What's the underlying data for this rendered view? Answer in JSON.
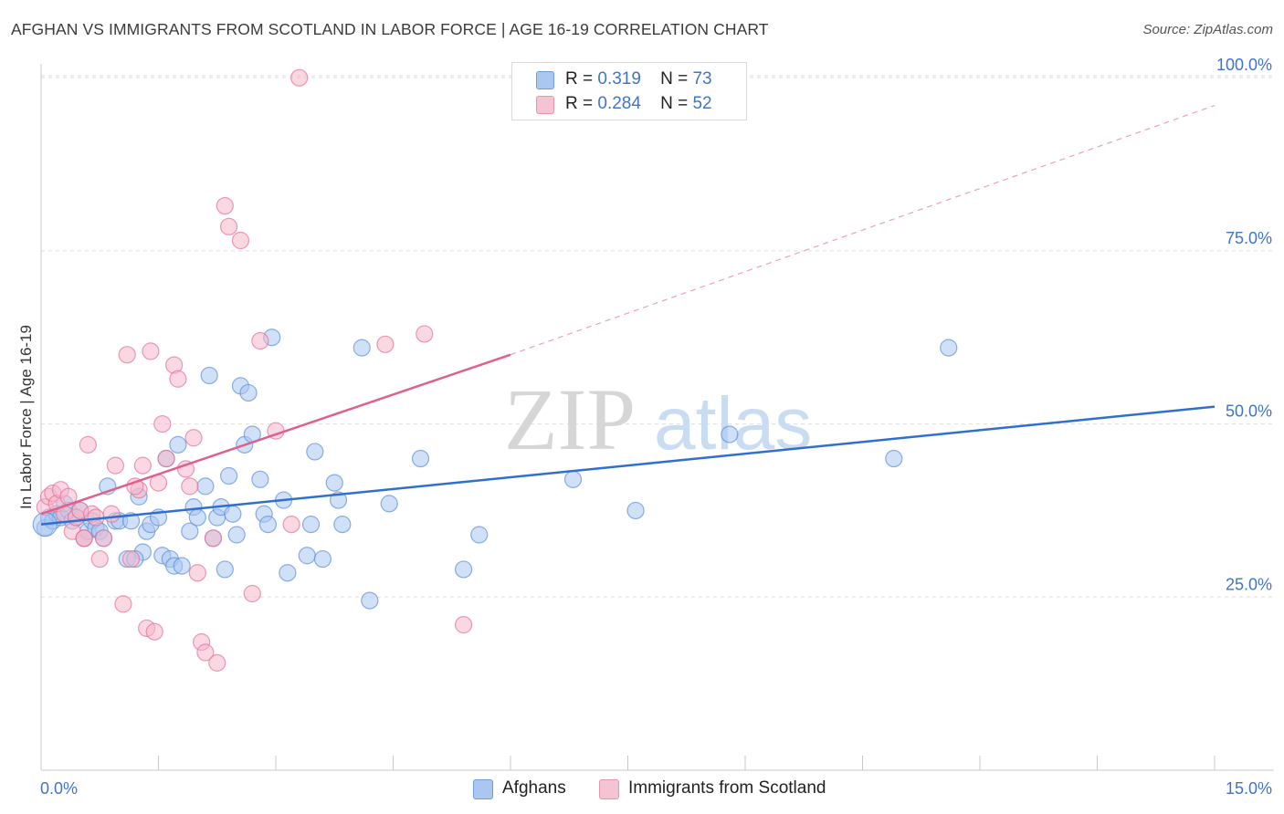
{
  "title": "AFGHAN VS IMMIGRANTS FROM SCOTLAND IN LABOR FORCE | AGE 16-19 CORRELATION CHART",
  "source": "Source: ZipAtlas.com",
  "watermark": {
    "part1": "ZIP",
    "part2": "atlas"
  },
  "legend": {
    "rows": [
      {
        "r_label": "R =",
        "r_value": "0.319",
        "n_label": "N =",
        "n_value": "73",
        "color": "#a9c7f0"
      },
      {
        "r_label": "R =",
        "r_value": "0.284",
        "n_label": "N =",
        "n_value": "52",
        "color": "#f5b8cb"
      }
    ]
  },
  "bottom_legend": [
    {
      "label": "Afghans",
      "color": "#a9c7f0"
    },
    {
      "label": "Immigrants from Scotland",
      "color": "#f5b8cb"
    }
  ],
  "chart_data": {
    "type": "scatter",
    "title": "AFGHAN VS IMMIGRANTS FROM SCOTLAND IN LABOR FORCE | AGE 16-19 CORRELATION CHART",
    "xlabel": "",
    "ylabel": "In Labor Force | Age 16-19",
    "xlim": [
      0,
      15
    ],
    "ylim": [
      0,
      102
    ],
    "x_tick_labels": [
      "0.0%",
      "15.0%"
    ],
    "y_ticks": [
      25,
      50,
      75,
      100
    ],
    "y_tick_labels": [
      "25.0%",
      "50.0%",
      "75.0%",
      "100.0%"
    ],
    "grid": true,
    "legend_position": "top-center",
    "series": [
      {
        "name": "Afghans",
        "color": "#5b8fd9",
        "fill": "#a9c7f0",
        "trend": {
          "x": [
            0,
            15
          ],
          "y": [
            35.5,
            52.5
          ],
          "dashed_from": null
        },
        "points": [
          [
            0.05,
            35.0
          ],
          [
            0.1,
            36.5
          ],
          [
            0.15,
            36.0
          ],
          [
            0.2,
            37.0
          ],
          [
            0.25,
            36.5
          ],
          [
            0.3,
            38.5
          ],
          [
            0.35,
            37.5
          ],
          [
            0.4,
            36.0
          ],
          [
            0.5,
            37.5
          ],
          [
            0.55,
            33.5
          ],
          [
            0.6,
            34.5
          ],
          [
            0.65,
            36.0
          ],
          [
            0.7,
            35.0
          ],
          [
            0.75,
            34.5
          ],
          [
            0.8,
            33.5
          ],
          [
            0.85,
            41.0
          ],
          [
            0.95,
            36.0
          ],
          [
            1.0,
            36.0
          ],
          [
            1.1,
            30.5
          ],
          [
            1.15,
            36.0
          ],
          [
            1.25,
            39.5
          ],
          [
            1.3,
            31.5
          ],
          [
            1.35,
            34.5
          ],
          [
            1.4,
            35.5
          ],
          [
            1.5,
            36.5
          ],
          [
            1.55,
            31.0
          ],
          [
            1.6,
            45.0
          ],
          [
            1.65,
            30.5
          ],
          [
            1.7,
            29.5
          ],
          [
            1.75,
            47.0
          ],
          [
            1.8,
            29.5
          ],
          [
            1.9,
            34.5
          ],
          [
            1.95,
            38.0
          ],
          [
            2.0,
            36.5
          ],
          [
            2.1,
            41.0
          ],
          [
            2.15,
            57.0
          ],
          [
            2.2,
            33.5
          ],
          [
            2.25,
            36.5
          ],
          [
            2.3,
            38.0
          ],
          [
            2.35,
            29.0
          ],
          [
            2.4,
            42.5
          ],
          [
            2.45,
            37.0
          ],
          [
            2.5,
            34.0
          ],
          [
            2.55,
            55.5
          ],
          [
            2.6,
            47.0
          ],
          [
            2.65,
            54.5
          ],
          [
            2.7,
            48.5
          ],
          [
            2.8,
            42.0
          ],
          [
            2.85,
            37.0
          ],
          [
            2.9,
            35.5
          ],
          [
            2.95,
            62.5
          ],
          [
            3.1,
            39.0
          ],
          [
            3.15,
            28.5
          ],
          [
            3.4,
            31.0
          ],
          [
            3.45,
            35.5
          ],
          [
            3.5,
            46.0
          ],
          [
            3.6,
            30.5
          ],
          [
            3.75,
            41.5
          ],
          [
            3.8,
            39.0
          ],
          [
            3.85,
            35.5
          ],
          [
            4.1,
            61.0
          ],
          [
            4.2,
            24.5
          ],
          [
            4.45,
            38.5
          ],
          [
            4.85,
            45.0
          ],
          [
            5.4,
            29.0
          ],
          [
            5.6,
            34.0
          ],
          [
            6.8,
            42.0
          ],
          [
            7.6,
            37.5
          ],
          [
            8.8,
            48.5
          ],
          [
            10.9,
            45.0
          ],
          [
            11.6,
            61.0
          ],
          [
            1.2,
            30.5
          ],
          [
            0.45,
            36.5
          ]
        ]
      },
      {
        "name": "Immigrants from Scotland",
        "color": "#e56f98",
        "fill": "#f5b8cb",
        "trend": {
          "x": [
            0,
            6.0
          ],
          "y": [
            37.0,
            60.0
          ],
          "dashed_to": [
            15,
            96
          ]
        },
        "points": [
          [
            0.05,
            38.0
          ],
          [
            0.1,
            39.5
          ],
          [
            0.15,
            40.0
          ],
          [
            0.2,
            38.5
          ],
          [
            0.25,
            40.5
          ],
          [
            0.3,
            37.0
          ],
          [
            0.35,
            39.5
          ],
          [
            0.4,
            34.5
          ],
          [
            0.45,
            36.5
          ],
          [
            0.5,
            37.5
          ],
          [
            0.55,
            33.5
          ],
          [
            0.6,
            47.0
          ],
          [
            0.65,
            37.0
          ],
          [
            0.7,
            36.5
          ],
          [
            0.75,
            30.5
          ],
          [
            0.8,
            33.5
          ],
          [
            0.9,
            37.0
          ],
          [
            0.95,
            44.0
          ],
          [
            1.05,
            24.0
          ],
          [
            1.1,
            60.0
          ],
          [
            1.15,
            30.5
          ],
          [
            1.25,
            40.5
          ],
          [
            1.3,
            44.0
          ],
          [
            1.35,
            20.5
          ],
          [
            1.4,
            60.5
          ],
          [
            1.45,
            20.0
          ],
          [
            1.5,
            41.5
          ],
          [
            1.55,
            50.0
          ],
          [
            1.6,
            45.0
          ],
          [
            1.7,
            58.5
          ],
          [
            1.75,
            56.5
          ],
          [
            1.85,
            43.5
          ],
          [
            1.9,
            41.0
          ],
          [
            1.95,
            48.0
          ],
          [
            2.0,
            28.5
          ],
          [
            2.05,
            18.5
          ],
          [
            2.1,
            17.0
          ],
          [
            2.2,
            33.5
          ],
          [
            2.25,
            15.5
          ],
          [
            2.35,
            81.5
          ],
          [
            2.4,
            78.5
          ],
          [
            2.55,
            76.5
          ],
          [
            2.7,
            25.5
          ],
          [
            2.8,
            62.0
          ],
          [
            3.0,
            49.0
          ],
          [
            3.2,
            35.5
          ],
          [
            3.3,
            100.0
          ],
          [
            4.4,
            61.5
          ],
          [
            4.9,
            63.0
          ],
          [
            5.4,
            21.0
          ],
          [
            1.2,
            41.0
          ],
          [
            0.55,
            33.5
          ]
        ]
      }
    ]
  }
}
